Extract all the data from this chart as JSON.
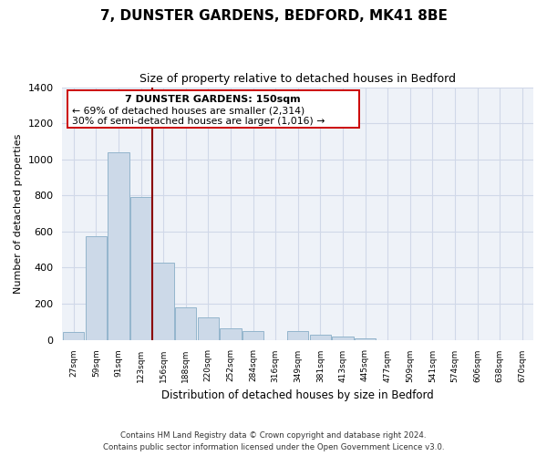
{
  "title": "7, DUNSTER GARDENS, BEDFORD, MK41 8BE",
  "subtitle": "Size of property relative to detached houses in Bedford",
  "xlabel": "Distribution of detached houses by size in Bedford",
  "ylabel": "Number of detached properties",
  "footer_line1": "Contains HM Land Registry data © Crown copyright and database right 2024.",
  "footer_line2": "Contains public sector information licensed under the Open Government Licence v3.0.",
  "categories": [
    "27sqm",
    "59sqm",
    "91sqm",
    "123sqm",
    "156sqm",
    "188sqm",
    "220sqm",
    "252sqm",
    "284sqm",
    "316sqm",
    "349sqm",
    "381sqm",
    "413sqm",
    "445sqm",
    "477sqm",
    "509sqm",
    "541sqm",
    "574sqm",
    "606sqm",
    "638sqm",
    "670sqm"
  ],
  "values": [
    45,
    575,
    1040,
    790,
    425,
    180,
    125,
    65,
    50,
    0,
    47,
    27,
    17,
    10,
    0,
    0,
    0,
    0,
    0,
    0,
    0
  ],
  "bar_color": "#ccd9e8",
  "bar_edge_color": "#93b5cc",
  "vline_index": 3.5,
  "ylim": [
    0,
    1400
  ],
  "yticks": [
    0,
    200,
    400,
    600,
    800,
    1000,
    1200,
    1400
  ],
  "annotation_title": "7 DUNSTER GARDENS: 150sqm",
  "annotation_line1": "← 69% of detached houses are smaller (2,314)",
  "annotation_line2": "30% of semi-detached houses are larger (1,016) →",
  "vline_color": "#8b0000",
  "box_edge_color": "#cc0000",
  "box_bg_color": "#ffffff",
  "grid_color": "#d0d8e8",
  "background_color": "#eef2f8"
}
